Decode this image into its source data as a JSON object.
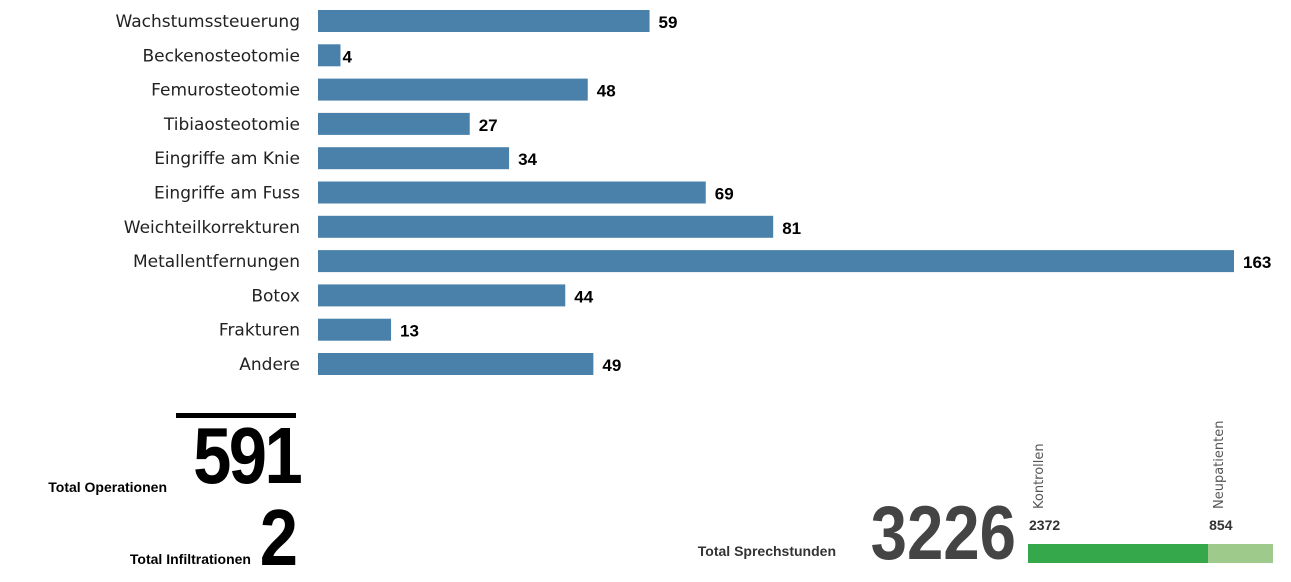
{
  "chart_data": {
    "type": "bar",
    "orientation": "horizontal",
    "categories": [
      "Wachstumssteuerung",
      "Beckenosteotomie",
      "Femurosteotomie",
      "Tibiaosteotomie",
      "Eingriffe am Knie",
      "Eingriffe am Fuss",
      "Weichteilkorrekturen",
      "Metallentfernungen",
      "Botox",
      "Frakturen",
      "Andere"
    ],
    "values": [
      59,
      4,
      48,
      27,
      34,
      69,
      81,
      163,
      44,
      13,
      49
    ],
    "data_labels": [
      "59",
      "4",
      "48",
      "27",
      "34",
      "69",
      "81",
      "163",
      "44",
      "13",
      "49"
    ],
    "bar_color": "#4a81aa",
    "xlim": [
      0,
      163
    ]
  },
  "totals": {
    "operations_label": "Total Operationen",
    "operations_value": "591",
    "infiltrations_label": "Total Infiltrationen",
    "infiltrations_value": "2",
    "sprechstunden_label": "Total Sprechstunden",
    "sprechstunden_value": "3226"
  },
  "sprechstunden_breakdown": {
    "type": "stacked-bar",
    "segments": [
      {
        "name": "Kontrollen",
        "value": 2372,
        "label": "2372",
        "color": "#35a84b"
      },
      {
        "name": "Neupatienten",
        "value": 854,
        "label": "854",
        "color": "#9ecb8c"
      }
    ]
  }
}
